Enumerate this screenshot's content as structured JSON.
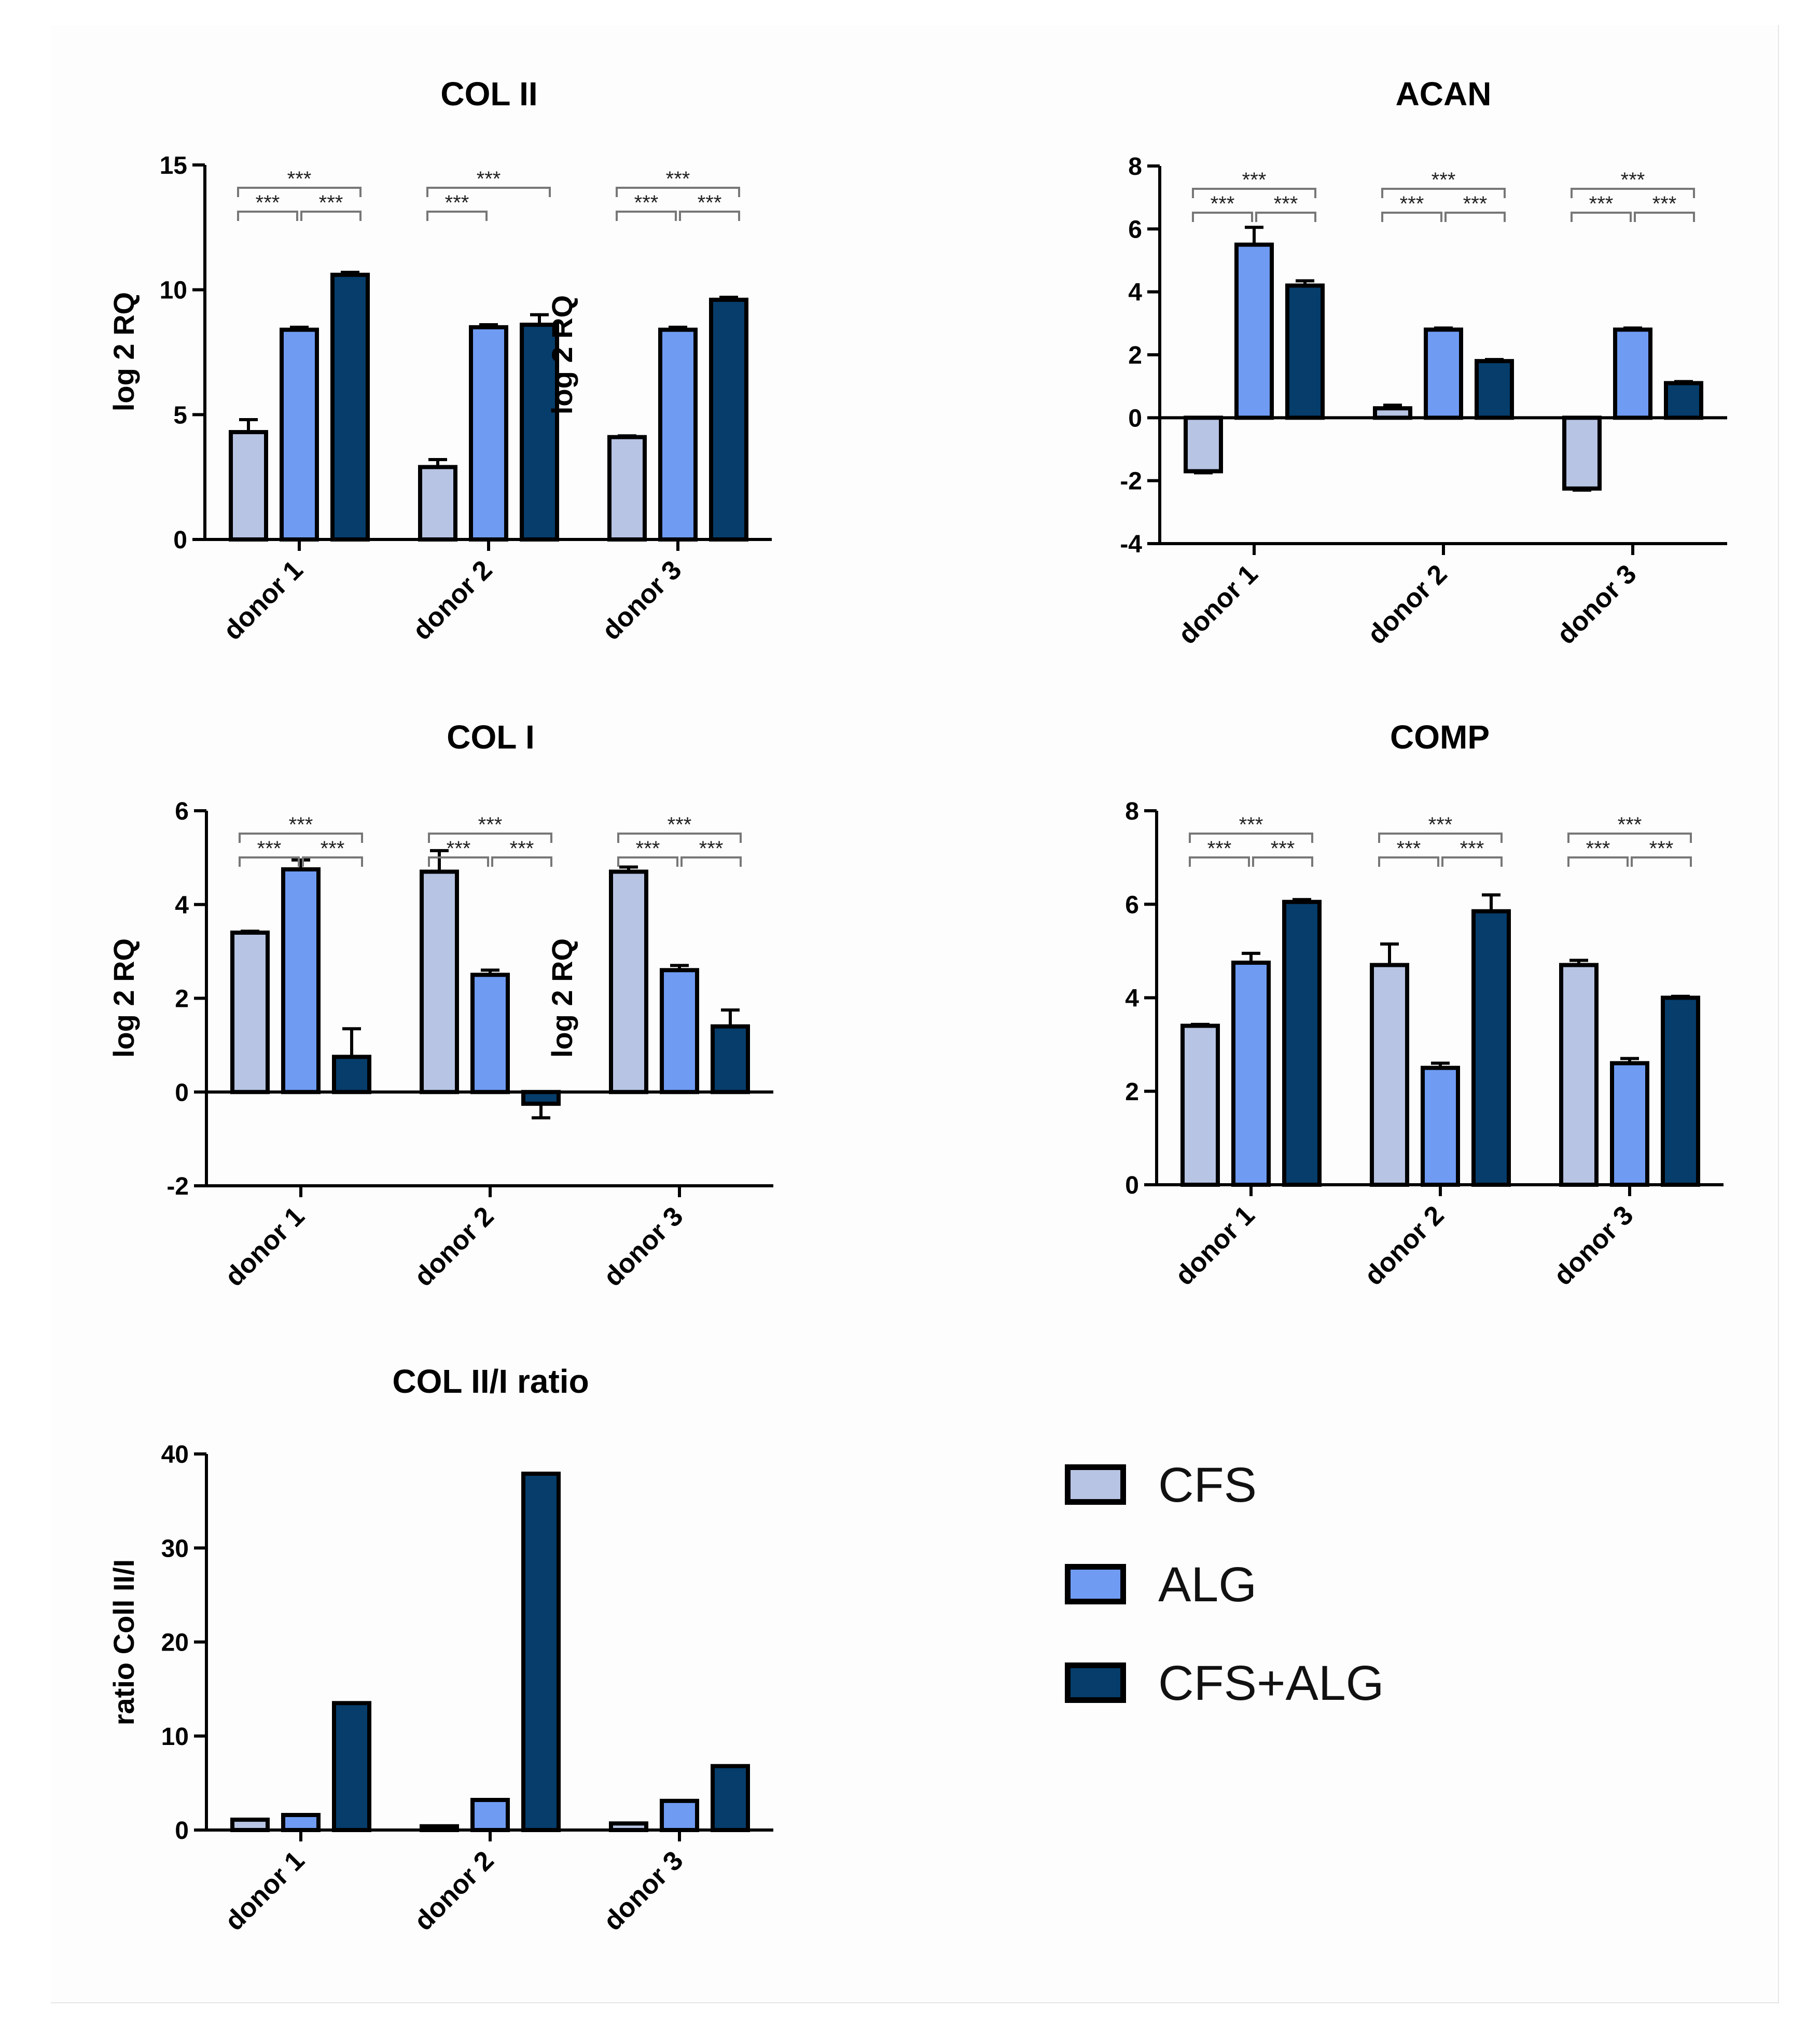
{
  "colors": {
    "CFS": "#b7c4e3",
    "ALG": "#6f9bf2",
    "CFS+ALG": "#063d6b"
  },
  "legend": [
    {
      "label": "CFS",
      "color": "#b7c4e3"
    },
    {
      "label": "ALG",
      "color": "#6f9bf2"
    },
    {
      "label": "CFS+ALG",
      "color": "#063d6b"
    }
  ],
  "chart_data": [
    {
      "id": "col2",
      "type": "bar",
      "title": "COL II",
      "ylabel": "log 2 RQ",
      "xlabel": "",
      "categories": [
        "donor 1",
        "donor 2",
        "donor 3"
      ],
      "ylim": [
        0,
        15
      ],
      "yticks": [
        "0",
        "5",
        "10",
        "15"
      ],
      "series": [
        {
          "name": "CFS",
          "values": [
            4.3,
            2.9,
            4.1
          ],
          "errors": [
            0.5,
            0.3,
            0.05
          ]
        },
        {
          "name": "ALG",
          "values": [
            8.4,
            8.5,
            8.4
          ],
          "errors": [
            0.1,
            0.1,
            0.1
          ]
        },
        {
          "name": "CFS+ALG",
          "values": [
            10.6,
            8.6,
            9.6
          ],
          "errors": [
            0.1,
            0.4,
            0.1
          ]
        }
      ],
      "significance": [
        {
          "group": 0,
          "from": 0,
          "to": 1,
          "label": "***"
        },
        {
          "group": 0,
          "from": 1,
          "to": 2,
          "label": "***"
        },
        {
          "group": 0,
          "from": 0,
          "to": 2,
          "label": "***"
        },
        {
          "group": 1,
          "from": 0,
          "to": 1,
          "label": "***"
        },
        {
          "group": 1,
          "from": 0,
          "to": 2,
          "label": "***"
        },
        {
          "group": 2,
          "from": 0,
          "to": 1,
          "label": "***"
        },
        {
          "group": 2,
          "from": 1,
          "to": 2,
          "label": "***"
        },
        {
          "group": 2,
          "from": 0,
          "to": 2,
          "label": "***"
        }
      ]
    },
    {
      "id": "acan",
      "type": "bar",
      "title": "ACAN",
      "ylabel": "log 2 RQ",
      "xlabel": "",
      "categories": [
        "donor 1",
        "donor 2",
        "donor 3"
      ],
      "ylim": [
        -4,
        8
      ],
      "yticks": [
        "-4",
        "-2",
        "0",
        "2",
        "4",
        "6",
        "8"
      ],
      "series": [
        {
          "name": "CFS",
          "values": [
            -1.7,
            0.3,
            -2.25
          ],
          "errors": [
            0.05,
            0.1,
            0.05
          ]
        },
        {
          "name": "ALG",
          "values": [
            5.5,
            2.8,
            2.8
          ],
          "errors": [
            0.55,
            0.05,
            0.05
          ]
        },
        {
          "name": "CFS+ALG",
          "values": [
            4.2,
            1.8,
            1.1
          ],
          "errors": [
            0.15,
            0.05,
            0.05
          ]
        }
      ],
      "significance": [
        {
          "group": 0,
          "from": 0,
          "to": 1,
          "label": "***"
        },
        {
          "group": 0,
          "from": 1,
          "to": 2,
          "label": "***"
        },
        {
          "group": 0,
          "from": 0,
          "to": 2,
          "label": "***"
        },
        {
          "group": 1,
          "from": 0,
          "to": 1,
          "label": "***"
        },
        {
          "group": 1,
          "from": 1,
          "to": 2,
          "label": "***"
        },
        {
          "group": 1,
          "from": 0,
          "to": 2,
          "label": "***"
        },
        {
          "group": 2,
          "from": 0,
          "to": 1,
          "label": "***"
        },
        {
          "group": 2,
          "from": 1,
          "to": 2,
          "label": "***"
        },
        {
          "group": 2,
          "from": 0,
          "to": 2,
          "label": "***"
        }
      ]
    },
    {
      "id": "col1",
      "type": "bar",
      "title": "COL I",
      "ylabel": "log 2 RQ",
      "xlabel": "",
      "categories": [
        "donor 1",
        "donor 2",
        "donor 3"
      ],
      "ylim": [
        -2,
        6
      ],
      "yticks": [
        "-2",
        "0",
        "2",
        "4",
        "6"
      ],
      "series": [
        {
          "name": "CFS",
          "values": [
            3.4,
            4.7,
            4.7
          ],
          "errors": [
            0.03,
            0.45,
            0.1
          ]
        },
        {
          "name": "ALG",
          "values": [
            4.75,
            2.5,
            2.6
          ],
          "errors": [
            0.2,
            0.1,
            0.1
          ]
        },
        {
          "name": "CFS+ALG",
          "values": [
            0.75,
            -0.25,
            1.4
          ],
          "errors": [
            0.6,
            0.3,
            0.35
          ]
        }
      ],
      "significance": [
        {
          "group": 0,
          "from": 0,
          "to": 1,
          "label": "***"
        },
        {
          "group": 0,
          "from": 1,
          "to": 2,
          "label": "***"
        },
        {
          "group": 0,
          "from": 0,
          "to": 2,
          "label": "***"
        },
        {
          "group": 1,
          "from": 0,
          "to": 1,
          "label": "***"
        },
        {
          "group": 1,
          "from": 1,
          "to": 2,
          "label": "***"
        },
        {
          "group": 1,
          "from": 0,
          "to": 2,
          "label": "***"
        },
        {
          "group": 2,
          "from": 0,
          "to": 1,
          "label": "***"
        },
        {
          "group": 2,
          "from": 1,
          "to": 2,
          "label": "***"
        },
        {
          "group": 2,
          "from": 0,
          "to": 2,
          "label": "***"
        }
      ]
    },
    {
      "id": "comp",
      "type": "bar",
      "title": "COMP",
      "ylabel": "log 2 RQ",
      "xlabel": "",
      "categories": [
        "donor 1",
        "donor 2",
        "donor 3"
      ],
      "ylim": [
        0,
        8
      ],
      "yticks": [
        "0",
        "2",
        "4",
        "6",
        "8"
      ],
      "series": [
        {
          "name": "CFS",
          "values": [
            3.4,
            4.7,
            4.7
          ],
          "errors": [
            0.03,
            0.45,
            0.1
          ]
        },
        {
          "name": "ALG",
          "values": [
            4.75,
            2.5,
            2.6
          ],
          "errors": [
            0.2,
            0.1,
            0.1
          ]
        },
        {
          "name": "CFS+ALG",
          "values": [
            6.05,
            5.85,
            4.0
          ],
          "errors": [
            0.05,
            0.35,
            0.03
          ]
        }
      ],
      "significance": [
        {
          "group": 0,
          "from": 0,
          "to": 1,
          "label": "***"
        },
        {
          "group": 0,
          "from": 1,
          "to": 2,
          "label": "***"
        },
        {
          "group": 0,
          "from": 0,
          "to": 2,
          "label": "***"
        },
        {
          "group": 1,
          "from": 0,
          "to": 1,
          "label": "***"
        },
        {
          "group": 1,
          "from": 1,
          "to": 2,
          "label": "***"
        },
        {
          "group": 1,
          "from": 0,
          "to": 2,
          "label": "***"
        },
        {
          "group": 2,
          "from": 0,
          "to": 1,
          "label": "***"
        },
        {
          "group": 2,
          "from": 1,
          "to": 2,
          "label": "***"
        },
        {
          "group": 2,
          "from": 0,
          "to": 2,
          "label": "***"
        }
      ]
    },
    {
      "id": "ratio",
      "type": "bar",
      "title": "COL II/I ratio",
      "ylabel": "ratio Coll II/I",
      "xlabel": "",
      "categories": [
        "donor 1",
        "donor 2",
        "donor 3"
      ],
      "ylim": [
        0,
        40
      ],
      "yticks": [
        "0",
        "10",
        "20",
        "30",
        "40"
      ],
      "series": [
        {
          "name": "CFS",
          "values": [
            1.1,
            0.4,
            0.7
          ],
          "errors": [
            0,
            0,
            0
          ]
        },
        {
          "name": "ALG",
          "values": [
            1.6,
            3.2,
            3.1
          ],
          "errors": [
            0,
            0,
            0
          ]
        },
        {
          "name": "CFS+ALG",
          "values": [
            13.5,
            37.9,
            6.8
          ],
          "errors": [
            0,
            0,
            0
          ]
        }
      ],
      "significance": []
    }
  ]
}
